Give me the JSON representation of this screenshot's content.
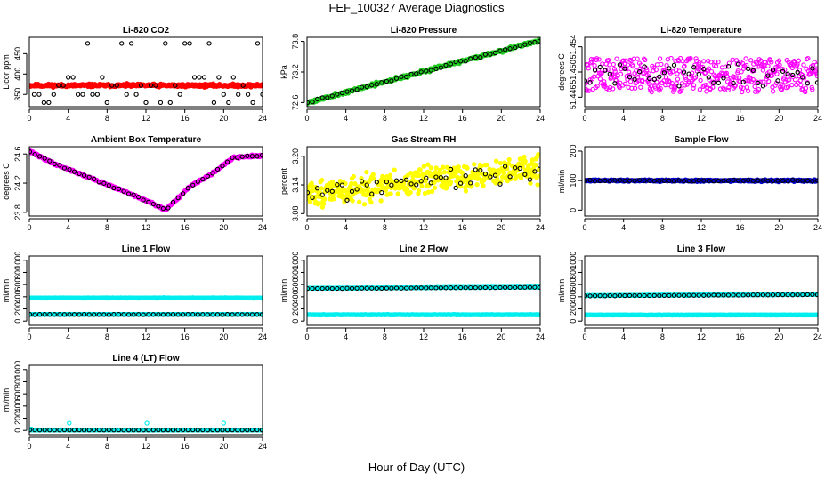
{
  "figure": {
    "title": "FEF_100327  Average Diagnostics",
    "xlabel": "Hour of Day (UTC)"
  },
  "chart_data": [
    {
      "type": "scatter",
      "title": "Li-820 CO2",
      "ylabel": "Licor ppm",
      "xlim": [
        0,
        24
      ],
      "ylim": [
        320,
        490
      ],
      "xticks": [
        "0",
        "4",
        "8",
        "12",
        "16",
        "20",
        "24"
      ],
      "yticks": [
        {
          "v": 350,
          "label": "350"
        },
        {
          "v": 400,
          "label": "400"
        },
        {
          "v": 450,
          "label": "450"
        }
      ],
      "series": [
        {
          "name": "all",
          "kind": "dense",
          "color": "#ff0000",
          "fill": true,
          "center": 372,
          "noise": 3,
          "drift": 0,
          "n": 400,
          "seed": 11
        },
        {
          "name": "avg",
          "kind": "discrete",
          "color": "#000000",
          "fill": false,
          "levels": [
            330,
            350,
            372,
            392,
            475
          ],
          "step": 0.5,
          "seed": 12
        }
      ]
    },
    {
      "type": "scatter",
      "title": "Li-820 Pressure",
      "ylabel": "kPa",
      "xlim": [
        0,
        24
      ],
      "ylim": [
        72.52,
        73.88
      ],
      "xticks": [
        "0",
        "4",
        "8",
        "12",
        "16",
        "20",
        "24"
      ],
      "yticks": [
        {
          "v": 72.6,
          "label": "72.6"
        },
        {
          "v": 73.2,
          "label": "73.2"
        },
        {
          "v": 73.8,
          "label": "73.8"
        }
      ],
      "series": [
        {
          "name": "all",
          "kind": "trend",
          "color": "#22cc22",
          "fill": true,
          "start": 72.6,
          "end": 73.82,
          "noise": 0.025,
          "n": 400,
          "seed": 21
        },
        {
          "name": "avg",
          "kind": "trend",
          "color": "#000000",
          "fill": false,
          "start": 72.6,
          "end": 73.82,
          "noise": 0.015,
          "n": 48,
          "seed": 22
        }
      ]
    },
    {
      "type": "scatter",
      "title": "Li-820 Temperature",
      "ylabel": "degrees C",
      "xlim": [
        0,
        24
      ],
      "ylim": [
        51.4445,
        51.4555
      ],
      "xticks": [
        "0",
        "4",
        "8",
        "12",
        "16",
        "20",
        "24"
      ],
      "yticks": [
        {
          "v": 51.446,
          "label": "51.446"
        },
        {
          "v": 51.45,
          "label": "51.450"
        },
        {
          "v": 51.454,
          "label": "51.454"
        }
      ],
      "series": [
        {
          "name": "all",
          "kind": "random",
          "color": "#ff00ff",
          "fill": false,
          "center": 51.4495,
          "noise": 0.0027,
          "n": 420,
          "seed": 31
        },
        {
          "name": "avg",
          "kind": "random",
          "color": "#000000",
          "fill": false,
          "center": 51.4495,
          "noise": 0.0018,
          "n": 48,
          "seed": 32
        }
      ]
    },
    {
      "type": "scatter",
      "title": "Ambient Box Temperature",
      "ylabel": "degrees C",
      "xlim": [
        0,
        24
      ],
      "ylim": [
        23.75,
        24.7
      ],
      "xticks": [
        "0",
        "4",
        "8",
        "12",
        "16",
        "20",
        "24"
      ],
      "yticks": [
        {
          "v": 23.8,
          "label": "23.8"
        },
        {
          "v": 24.2,
          "label": "24.2"
        },
        {
          "v": 24.6,
          "label": "24.6"
        }
      ],
      "series": [
        {
          "name": "all",
          "kind": "piecewise",
          "color": "#ff00ff",
          "fill": true,
          "points": [
            [
              0,
              24.64
            ],
            [
              2.5,
              24.47
            ],
            [
              8,
              24.18
            ],
            [
              11,
              24.02
            ],
            [
              13,
              23.9
            ],
            [
              14,
              23.83
            ],
            [
              16.5,
              24.15
            ],
            [
              19,
              24.35
            ],
            [
              21,
              24.55
            ],
            [
              24,
              24.58
            ]
          ],
          "noise": 0.012,
          "n": 400,
          "seed": 41
        },
        {
          "name": "avg",
          "kind": "piecewise",
          "color": "#000000",
          "fill": false,
          "points": [
            [
              0,
              24.64
            ],
            [
              2.5,
              24.47
            ],
            [
              8,
              24.18
            ],
            [
              11,
              24.02
            ],
            [
              13,
              23.9
            ],
            [
              14,
              23.83
            ],
            [
              16.5,
              24.15
            ],
            [
              19,
              24.35
            ],
            [
              21,
              24.55
            ],
            [
              24,
              24.58
            ]
          ],
          "noise": 0.008,
          "n": 48,
          "seed": 42
        }
      ]
    },
    {
      "type": "scatter",
      "title": "Gas Stream RH",
      "ylabel": "percent",
      "xlim": [
        0,
        24
      ],
      "ylim": [
        3.075,
        3.22
      ],
      "xticks": [
        "0",
        "4",
        "8",
        "12",
        "16",
        "20",
        "24"
      ],
      "yticks": [
        {
          "v": 3.08,
          "label": "3.08"
        },
        {
          "v": 3.14,
          "label": "3.14"
        },
        {
          "v": 3.2,
          "label": "3.20"
        }
      ],
      "series": [
        {
          "name": "all",
          "kind": "trend",
          "color": "#ffff00",
          "fill": true,
          "start": 3.12,
          "end": 3.175,
          "noise": 0.022,
          "n": 450,
          "seed": 51
        },
        {
          "name": "avg",
          "kind": "trend",
          "color": "#000000",
          "fill": false,
          "start": 3.12,
          "end": 3.175,
          "noise": 0.018,
          "n": 48,
          "seed": 52
        }
      ]
    },
    {
      "type": "scatter",
      "title": "Sample Flow",
      "ylabel": "ml/min",
      "xlim": [
        0,
        24
      ],
      "ylim": [
        -20,
        215
      ],
      "xticks": [
        "0",
        "4",
        "8",
        "12",
        "16",
        "20",
        "24"
      ],
      "yticks": [
        {
          "v": 0,
          "label": "0"
        },
        {
          "v": 100,
          "label": "100"
        },
        {
          "v": 200,
          "label": "200"
        }
      ],
      "series": [
        {
          "name": "all",
          "kind": "dense",
          "color": "#0000cc",
          "fill": true,
          "center": 100,
          "noise": 2.5,
          "drift": 0,
          "n": 420,
          "seed": 61
        },
        {
          "name": "avg",
          "kind": "dense",
          "color": "#000000",
          "fill": false,
          "center": 100,
          "noise": 1.5,
          "drift": 0,
          "n": 48,
          "seed": 62
        }
      ]
    },
    {
      "type": "scatter",
      "title": "Line 1 Flow",
      "ylabel": "ml/min",
      "xlim": [
        0,
        24
      ],
      "ylim": [
        -70,
        1070
      ],
      "xticks": [
        "0",
        "4",
        "8",
        "12",
        "16",
        "20",
        "24"
      ],
      "yticks": [
        {
          "v": 0,
          "label": "0"
        },
        {
          "v": 200,
          "label": "200"
        },
        {
          "v": 400,
          "label": "400"
        },
        {
          "v": 600,
          "label": "600"
        },
        {
          "v": 800,
          "label": "800"
        },
        {
          "v": 1000,
          "label": "1000"
        }
      ],
      "series": [
        {
          "name": "high",
          "kind": "dense",
          "color": "#00eeee",
          "fill": true,
          "center": 380,
          "noise": 4,
          "drift": 0,
          "n": 400,
          "seed": 71
        },
        {
          "name": "low",
          "kind": "dense",
          "color": "#00eeee",
          "fill": true,
          "center": 110,
          "noise": 3,
          "drift": 0,
          "n": 400,
          "seed": 72
        },
        {
          "name": "avg",
          "kind": "dense",
          "color": "#000000",
          "fill": false,
          "center": 108,
          "noise": 2,
          "drift": 0,
          "n": 48,
          "seed": 73
        }
      ]
    },
    {
      "type": "scatter",
      "title": "Line 2 Flow",
      "ylabel": "ml/min",
      "xlim": [
        0,
        24
      ],
      "ylim": [
        -70,
        1070
      ],
      "xticks": [
        "0",
        "4",
        "8",
        "12",
        "16",
        "20",
        "24"
      ],
      "yticks": [
        {
          "v": 0,
          "label": "0"
        },
        {
          "v": 200,
          "label": "200"
        },
        {
          "v": 400,
          "label": "400"
        },
        {
          "v": 600,
          "label": "600"
        },
        {
          "v": 800,
          "label": "800"
        },
        {
          "v": 1000,
          "label": "1000"
        }
      ],
      "series": [
        {
          "name": "high",
          "kind": "trend",
          "color": "#00eeee",
          "fill": true,
          "start": 540,
          "end": 560,
          "noise": 4,
          "n": 400,
          "seed": 81
        },
        {
          "name": "low",
          "kind": "dense",
          "color": "#00eeee",
          "fill": true,
          "center": 105,
          "noise": 3,
          "drift": 0,
          "n": 400,
          "seed": 82
        },
        {
          "name": "avg",
          "kind": "trend",
          "color": "#000000",
          "fill": false,
          "start": 535,
          "end": 555,
          "noise": 2,
          "n": 48,
          "seed": 83
        }
      ]
    },
    {
      "type": "scatter",
      "title": "Line 3 Flow",
      "ylabel": "ml/min",
      "xlim": [
        0,
        24
      ],
      "ylim": [
        -70,
        1070
      ],
      "xticks": [
        "0",
        "4",
        "8",
        "12",
        "16",
        "20",
        "24"
      ],
      "yticks": [
        {
          "v": 0,
          "label": "0"
        },
        {
          "v": 200,
          "label": "200"
        },
        {
          "v": 400,
          "label": "400"
        },
        {
          "v": 600,
          "label": "600"
        },
        {
          "v": 800,
          "label": "800"
        },
        {
          "v": 1000,
          "label": "1000"
        }
      ],
      "series": [
        {
          "name": "high",
          "kind": "trend",
          "color": "#00eeee",
          "fill": true,
          "start": 420,
          "end": 440,
          "noise": 4,
          "n": 400,
          "seed": 91
        },
        {
          "name": "low",
          "kind": "dense",
          "color": "#00eeee",
          "fill": true,
          "center": 100,
          "noise": 3,
          "drift": 0,
          "n": 400,
          "seed": 92
        },
        {
          "name": "avg",
          "kind": "trend",
          "color": "#000000",
          "fill": false,
          "start": 415,
          "end": 435,
          "noise": 2,
          "n": 48,
          "seed": 93
        }
      ]
    },
    {
      "type": "scatter",
      "title": "Line 4 (LT) Flow",
      "ylabel": "ml/min",
      "xlim": [
        0,
        24
      ],
      "ylim": [
        -70,
        1070
      ],
      "xticks": [
        "0",
        "4",
        "8",
        "12",
        "16",
        "20",
        "24"
      ],
      "yticks": [
        {
          "v": 0,
          "label": "0"
        },
        {
          "v": 200,
          "label": "200"
        },
        {
          "v": 400,
          "label": "400"
        },
        {
          "v": 600,
          "label": "600"
        },
        {
          "v": 800,
          "label": "800"
        },
        {
          "v": 1000,
          "label": "1000"
        }
      ],
      "series": [
        {
          "name": "all",
          "kind": "dense",
          "color": "#00eeee",
          "fill": true,
          "center": 8,
          "noise": 2,
          "drift": 0,
          "n": 400,
          "seed": 101
        },
        {
          "name": "spikes",
          "kind": "points",
          "color": "#00eeee",
          "fill": false,
          "x": [
            4.1,
            12.1,
            20.0,
            0.2
          ],
          "y": [
            120,
            120,
            120,
            25
          ]
        },
        {
          "name": "avg",
          "kind": "dense",
          "color": "#000000",
          "fill": false,
          "center": 8,
          "noise": 1,
          "drift": 0,
          "n": 48,
          "seed": 102
        }
      ]
    }
  ]
}
